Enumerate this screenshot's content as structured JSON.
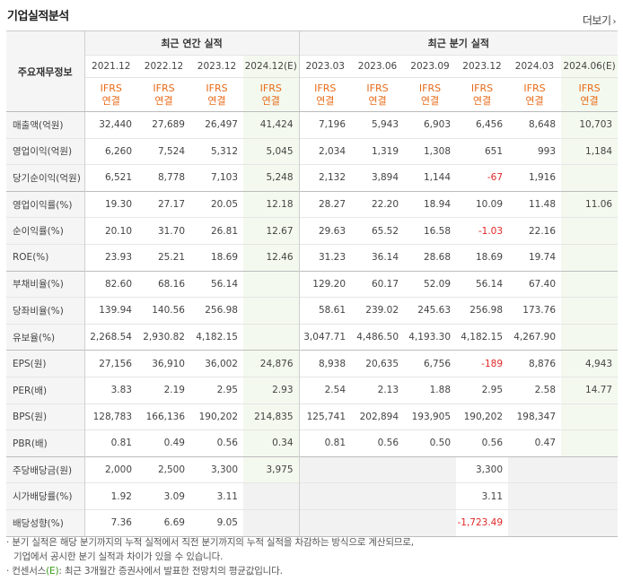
{
  "title": "기업실적분석",
  "more_label": "더보기",
  "header": {
    "corner_label": "주요재무정보",
    "annual_label": "최근 연간 실적",
    "quarter_label": "최근 분기 실적",
    "periods": [
      "2021.12",
      "2022.12",
      "2023.12",
      "2024.12(E)",
      "2023.03",
      "2023.06",
      "2023.09",
      "2023.12",
      "2024.03",
      "2024.06(E)"
    ],
    "ifrs_top": "IFRS",
    "ifrs_bottom": "연결"
  },
  "rows": [
    {
      "label": "매출액(억원)",
      "v": [
        "32,440",
        "27,689",
        "26,497",
        "41,424",
        "7,196",
        "5,943",
        "6,903",
        "6,456",
        "8,648",
        "10,703"
      ]
    },
    {
      "label": "영업이익(억원)",
      "v": [
        "6,260",
        "7,524",
        "5,312",
        "5,045",
        "2,034",
        "1,319",
        "1,308",
        "651",
        "993",
        "1,184"
      ]
    },
    {
      "label": "당기순이익(억원)",
      "v": [
        "6,521",
        "8,778",
        "7,103",
        "5,248",
        "2,132",
        "3,894",
        "1,144",
        "-67",
        "1,916",
        ""
      ]
    },
    {
      "label": "영업이익률(%)",
      "v": [
        "19.30",
        "27.17",
        "20.05",
        "12.18",
        "28.27",
        "22.20",
        "18.94",
        "10.09",
        "11.48",
        "11.06"
      ]
    },
    {
      "label": "순이익률(%)",
      "v": [
        "20.10",
        "31.70",
        "26.81",
        "12.67",
        "29.63",
        "65.52",
        "16.58",
        "-1.03",
        "22.16",
        ""
      ]
    },
    {
      "label": "ROE(%)",
      "v": [
        "23.93",
        "25.21",
        "18.69",
        "12.46",
        "31.23",
        "36.14",
        "28.68",
        "18.69",
        "19.74",
        ""
      ]
    },
    {
      "label": "부채비율(%)",
      "v": [
        "82.60",
        "68.16",
        "56.14",
        "",
        "129.20",
        "60.17",
        "52.09",
        "56.14",
        "67.40",
        ""
      ]
    },
    {
      "label": "당좌비율(%)",
      "v": [
        "139.94",
        "140.56",
        "256.98",
        "",
        "58.61",
        "239.02",
        "245.63",
        "256.98",
        "173.76",
        ""
      ]
    },
    {
      "label": "유보율(%)",
      "v": [
        "2,268.54",
        "2,930.82",
        "4,182.15",
        "",
        "3,047.71",
        "4,486.50",
        "4,193.30",
        "4,182.15",
        "4,267.90",
        ""
      ]
    },
    {
      "label": "EPS(원)",
      "v": [
        "27,156",
        "36,910",
        "36,002",
        "24,876",
        "8,938",
        "20,635",
        "6,756",
        "-189",
        "8,876",
        "4,943"
      ]
    },
    {
      "label": "PER(배)",
      "v": [
        "3.83",
        "2.19",
        "2.95",
        "2.93",
        "2.54",
        "2.13",
        "1.88",
        "2.95",
        "2.58",
        "14.77"
      ]
    },
    {
      "label": "BPS(원)",
      "v": [
        "128,783",
        "166,136",
        "190,202",
        "214,835",
        "125,741",
        "202,894",
        "193,905",
        "190,202",
        "198,347",
        ""
      ]
    },
    {
      "label": "PBR(배)",
      "v": [
        "0.81",
        "0.49",
        "0.56",
        "0.34",
        "0.81",
        "0.56",
        "0.50",
        "0.56",
        "0.47",
        ""
      ]
    },
    {
      "label": "주당배당금(원)",
      "v": [
        "2,000",
        "2,500",
        "3,300",
        "3,975",
        "",
        "",
        "",
        "3,300",
        "",
        ""
      ]
    },
    {
      "label": "시가배당률(%)",
      "v": [
        "1.92",
        "3.09",
        "3.11",
        "",
        "",
        "",
        "",
        "3.11",
        "",
        ""
      ]
    },
    {
      "label": "배당성향(%)",
      "v": [
        "7.36",
        "6.69",
        "9.05",
        "",
        "",
        "",
        "",
        "-1,723.49",
        "",
        ""
      ]
    }
  ],
  "notes": {
    "line1": "· 분기 실적은 해당 분기까지의 누적 실적에서 직전 분기까지의 누적 실적을 차감하는 방식으로 계산되므로,",
    "line2": "기업에서 공시한 분기 실적과 차이가 있을 수 있습니다.",
    "line3_pre": "· 컨센서스",
    "line3_e": "(E)",
    "line3_post": ": 최근 3개월간 증권사에서 발표한 전망치의 평균값입니다."
  },
  "colors": {
    "ifrs": "#e86a18",
    "negative": "#e22626",
    "estimate_bg": "#f3f9ee",
    "header_bg": "#f5f5f5"
  }
}
